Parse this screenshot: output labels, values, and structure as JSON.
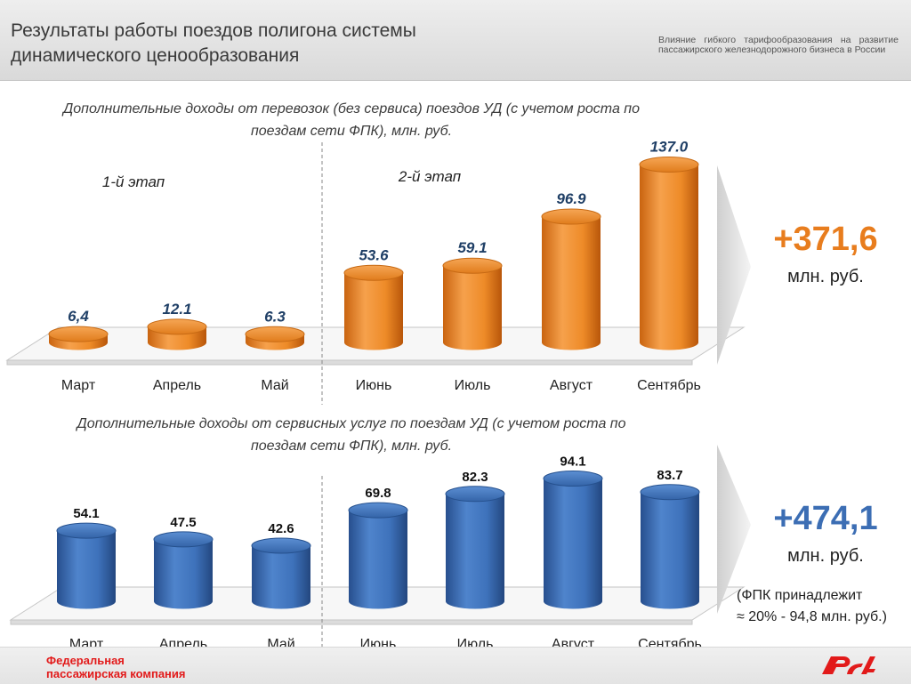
{
  "header": {
    "title_line1": "Результаты работы поездов полигона системы",
    "title_line2": "динамического ценообразования",
    "subtitle": "Влияние гибкого тарифообразования на развитие пассажирского железнодорожного бизнеса в России"
  },
  "colors": {
    "orange": "#ec8a26",
    "blue": "#3d6fb6",
    "total_orange": "#e87d1e",
    "total_blue": "#3c6eb4",
    "brand_red": "#e21a1a"
  },
  "chart_data": [
    {
      "type": "bar",
      "title_line1": "Дополнительные доходы от перевозок (без сервиса) поездов УД (с учетом роста по",
      "title_line2": "поездам сети ФПК), млн. руб.",
      "categories": [
        "Март",
        "Апрель",
        "Май",
        "Июнь",
        "Июль",
        "Август",
        "Сентябрь"
      ],
      "values": [
        6.4,
        12.1,
        6.3,
        53.6,
        59.1,
        96.9,
        137.0
      ],
      "value_labels": [
        "6,4",
        "12.1",
        "6.3",
        "53.6",
        "59.1",
        "96.9",
        "137.0"
      ],
      "stages": [
        "1-й этап",
        "2-й этап"
      ],
      "total": "+371,6",
      "unit": "млн. руб."
    },
    {
      "type": "bar",
      "title_line1": "Дополнительные доходы от сервисных услуг по поездам УД (с учетом роста по",
      "title_line2": "поездам сети ФПК), млн. руб.",
      "categories": [
        "Март",
        "Апрель",
        "Май",
        "Июнь",
        "Июль",
        "Август",
        "Сентябрь"
      ],
      "values": [
        54.1,
        47.5,
        42.6,
        69.8,
        82.3,
        94.1,
        83.7
      ],
      "value_labels": [
        "54.1",
        "47.5",
        "42.6",
        "69.8",
        "82.3",
        "94.1",
        "83.7"
      ],
      "total": "+474,1",
      "unit": "млн. руб.",
      "note_line1": "(ФПК принадлежит",
      "note_line2": "≈ 20% - 94,8 млн. руб.)"
    }
  ],
  "footer": {
    "company_line1": "Федеральная",
    "company_line2": "пассажирская компания"
  }
}
